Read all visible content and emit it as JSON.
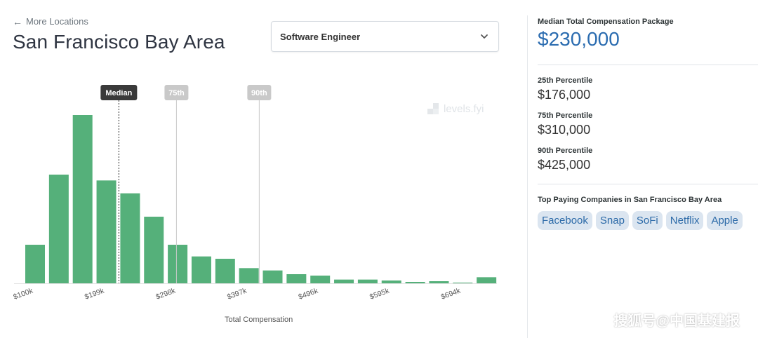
{
  "header": {
    "back_label": "More Locations",
    "title": "San Francisco Bay Area",
    "job_select_value": "Software Engineer"
  },
  "chart_data": {
    "type": "bar",
    "xlabel": "Total Compensation",
    "x_tick_labels": [
      "$100k",
      "$199k",
      "$298k",
      "$397k",
      "$496k",
      "$595k",
      "$694k"
    ],
    "bin_start_k": [
      100,
      133,
      166,
      199,
      232,
      265,
      298,
      331,
      364,
      397,
      430,
      463,
      496,
      529,
      562,
      595,
      628,
      661,
      694,
      727
    ],
    "values": [
      16.5,
      46.5,
      72,
      44,
      38.5,
      28.5,
      16.5,
      11.5,
      10.5,
      6.5,
      5.5,
      3.9,
      3.3,
      1.6,
      1.6,
      1.2,
      0.6,
      0.9,
      0.3,
      2.6
    ],
    "ylim": [
      0,
      78
    ],
    "grid": false,
    "bar_color": "#55b07a",
    "markers": [
      {
        "label": "Median",
        "value_k": 230,
        "style": "dashed",
        "color": "#3a3a3a"
      },
      {
        "label": "75th",
        "value_k": 310,
        "style": "solid",
        "color": "#c9c9c9"
      },
      {
        "label": "90th",
        "value_k": 425,
        "style": "solid",
        "color": "#c9c9c9"
      }
    ],
    "watermark": "levels.fyi"
  },
  "sidebar": {
    "median_label": "Median Total Compensation Package",
    "median_value": "$230,000",
    "median_color": "#2b6cb0",
    "percentiles": [
      {
        "label": "25th Percentile",
        "value": "$176,000"
      },
      {
        "label": "75th Percentile",
        "value": "$310,000"
      },
      {
        "label": "90th Percentile",
        "value": "$425,000"
      }
    ],
    "top_companies_label": "Top Paying Companies in San Francisco Bay Area",
    "companies": [
      "Facebook",
      "Snap",
      "SoFi",
      "Netflix",
      "Apple"
    ]
  },
  "footer_watermark": "搜狐号@中国基建报"
}
